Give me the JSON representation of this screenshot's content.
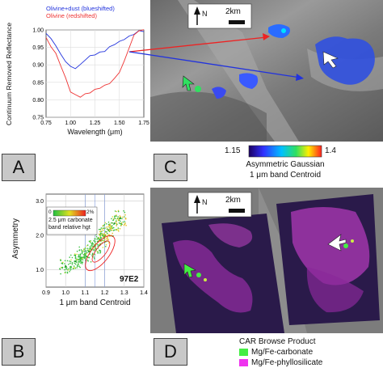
{
  "panelA": {
    "letter": "A",
    "legend": {
      "blue": "Olivine+dust (blueshifted)",
      "red": "Olivine (redshifted)"
    },
    "ylabel": "Continuum Removed Reflectance",
    "xlabel": "Wavelength (μm)",
    "yticks": [
      "1.00",
      "0.95",
      "0.90",
      "0.85",
      "0.80",
      "0.75"
    ],
    "xticks": [
      "0.75",
      "1.00",
      "1.25",
      "1.50",
      "1.75"
    ]
  },
  "panelB": {
    "letter": "B",
    "ylabel": "Asymmetry",
    "xlabel": "1 μm band Centroid",
    "yticks": [
      "3.0",
      "2.0",
      "1.0"
    ],
    "xticks": [
      "0.9",
      "1.0",
      "1.1",
      "1.2",
      "1.3",
      "1.4"
    ],
    "cbar_low": "0",
    "cbar_high": "2%",
    "legend_line1": "2.5 μm carbonate",
    "legend_line2": "band relative hgt",
    "tag": "97E2"
  },
  "panelC": {
    "letter": "C",
    "north": "N",
    "scale": "2km",
    "cbar_low": "1.15",
    "cbar_high": "1.4",
    "cbar_title1": "Asymmetric Gaussian",
    "cbar_title2": "1 μm band Centroid"
  },
  "panelD": {
    "letter": "D",
    "north": "N",
    "scale": "2km",
    "legend_title": "CAR Browse Product",
    "legend_items": [
      {
        "label": "Mg/Fe-carbonate",
        "color": "#44ee44"
      },
      {
        "label": "Mg/Fe-phyllosilicate",
        "color": "#ee33ee"
      }
    ]
  },
  "colors": {
    "blue": "#2233dd",
    "red": "#ee3333",
    "letter_bg": "#c8c8c8"
  },
  "chart_data": [
    {
      "type": "line",
      "xlabel": "Wavelength (μm)",
      "ylabel": "Continuum Removed Reflectance",
      "xlim": [
        0.75,
        1.75
      ],
      "ylim": [
        0.75,
        1.0
      ],
      "series": [
        {
          "name": "Olivine+dust (blueshifted)",
          "color": "#2233dd",
          "x": [
            0.75,
            0.8,
            0.85,
            0.9,
            0.95,
            1.0,
            1.05,
            1.1,
            1.15,
            1.2,
            1.25,
            1.3,
            1.35,
            1.4,
            1.45,
            1.5,
            1.55,
            1.6,
            1.65,
            1.7,
            1.75
          ],
          "y": [
            0.99,
            0.975,
            0.955,
            0.93,
            0.91,
            0.895,
            0.89,
            0.9,
            0.915,
            0.925,
            0.93,
            0.935,
            0.94,
            0.95,
            0.96,
            0.965,
            0.975,
            0.98,
            0.99,
            0.995,
            0.998
          ]
        },
        {
          "name": "Olivine (redshifted)",
          "color": "#ee3333",
          "x": [
            0.75,
            0.8,
            0.85,
            0.9,
            0.95,
            1.0,
            1.05,
            1.1,
            1.15,
            1.2,
            1.25,
            1.3,
            1.35,
            1.4,
            1.45,
            1.5,
            1.55,
            1.6,
            1.65,
            1.7,
            1.75
          ],
          "y": [
            0.975,
            0.955,
            0.93,
            0.9,
            0.86,
            0.825,
            0.812,
            0.81,
            0.815,
            0.822,
            0.828,
            0.835,
            0.84,
            0.848,
            0.86,
            0.88,
            0.91,
            0.95,
            0.985,
            0.998,
            1.0
          ]
        }
      ]
    },
    {
      "type": "scatter",
      "xlabel": "1 μm band Centroid",
      "ylabel": "Asymmetry",
      "xlim": [
        0.9,
        1.4
      ],
      "ylim": [
        0.5,
        3.2
      ],
      "annotation": "97E2",
      "colorbar": {
        "label": "2.5 μm carbonate band relative hgt",
        "range": [
          "0",
          "2%"
        ]
      },
      "series": [
        {
          "x": [
            1.0,
            1.05,
            1.08,
            1.1,
            1.12,
            1.15,
            1.18,
            1.2,
            1.22,
            1.25,
            1.28
          ],
          "y": [
            1.1,
            1.25,
            1.35,
            1.45,
            1.55,
            1.7,
            1.85,
            2.0,
            2.15,
            2.35,
            2.5
          ]
        }
      ]
    }
  ]
}
